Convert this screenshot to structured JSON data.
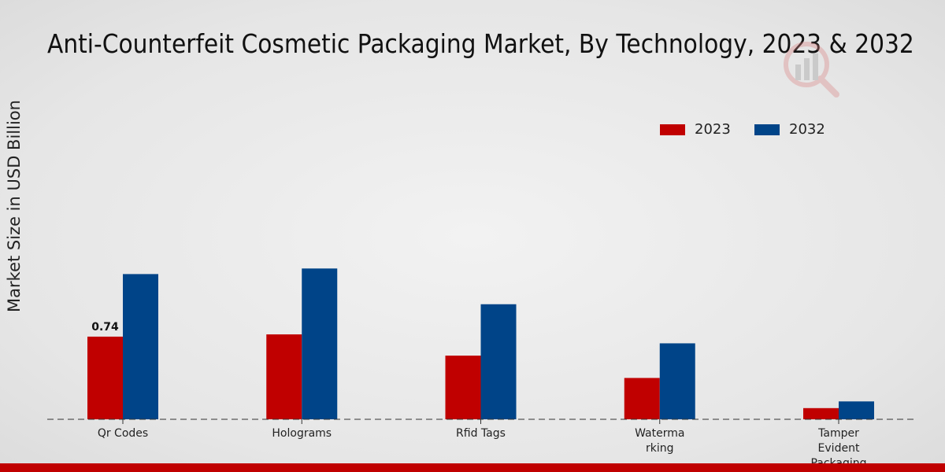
{
  "chart_data": {
    "type": "bar",
    "title": "Anti-Counterfeit Cosmetic Packaging Market, By Technology, 2023 & 2032",
    "xlabel": "",
    "ylabel": "Market Size in USD Billion",
    "categories": [
      "Qr Codes",
      "Holograms",
      "Rfid Tags",
      "Waterma\nrking",
      "Tamper\nEvident\nPackaging"
    ],
    "series": [
      {
        "name": "2023",
        "color": "#c00000",
        "values": [
          0.74,
          0.76,
          0.57,
          0.37,
          0.1
        ]
      },
      {
        "name": "2032",
        "color": "#004488",
        "values": [
          1.3,
          1.35,
          1.03,
          0.68,
          0.16
        ]
      }
    ],
    "data_labels": [
      {
        "series": "2023",
        "category": "Qr Codes",
        "text": "0.74"
      }
    ],
    "ylim": [
      0,
      2.6
    ],
    "grid": false,
    "legend_position": "top-right"
  }
}
